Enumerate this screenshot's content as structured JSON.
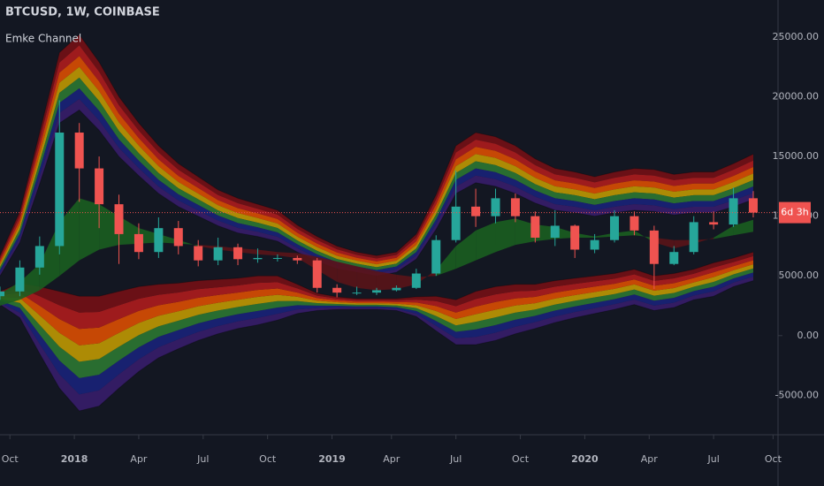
{
  "chart_data": {
    "type": "candlestick",
    "title": "BTCUSD, 1W, COINBASE",
    "subtitle": "Emke Channel",
    "x": [
      0,
      4,
      8,
      12,
      16,
      20,
      24,
      28,
      32,
      36,
      40,
      44,
      48,
      52,
      56,
      60,
      64,
      68,
      72,
      76,
      80,
      84,
      88,
      92,
      96,
      100,
      104,
      108,
      112,
      116,
      120,
      124,
      128,
      132,
      136,
      140,
      144,
      148,
      152
    ],
    "xlim": [
      0,
      157
    ],
    "xticks": [
      {
        "value": 2,
        "label": "Oct"
      },
      {
        "value": 15,
        "label": "2018"
      },
      {
        "value": 28,
        "label": "Apr"
      },
      {
        "value": 41,
        "label": "Jul"
      },
      {
        "value": 54,
        "label": "Oct"
      },
      {
        "value": 67,
        "label": "2019"
      },
      {
        "value": 79,
        "label": "Apr"
      },
      {
        "value": 92,
        "label": "Jul"
      },
      {
        "value": 105,
        "label": "Oct"
      },
      {
        "value": 118,
        "label": "2020"
      },
      {
        "value": 131,
        "label": "Apr"
      },
      {
        "value": 144,
        "label": "Jul"
      },
      {
        "value": 156,
        "label": "Oct"
      }
    ],
    "ylim": [
      -8300,
      28100
    ],
    "yticks": [
      {
        "value": -5000,
        "label": "-5000.00"
      },
      {
        "value": 0,
        "label": "0.00"
      },
      {
        "value": 5000,
        "label": "5000.00"
      },
      {
        "value": 10000,
        "label": "10000.00"
      },
      {
        "value": 15000,
        "label": "15000.00"
      },
      {
        "value": 20000,
        "label": "20000.00"
      },
      {
        "value": 25000,
        "label": "25000.00"
      }
    ],
    "candles": {
      "open": [
        3300,
        3700,
        5700,
        7500,
        17000,
        14000,
        11000,
        8500,
        7000,
        9000,
        7500,
        6300,
        7400,
        6400,
        6500,
        6500,
        6300,
        4000,
        3600,
        3600,
        3800,
        4000,
        5200,
        8000,
        10800,
        10000,
        11500,
        10000,
        8200,
        9200,
        7200,
        8000,
        10000,
        8800,
        6000,
        7000,
        9500,
        9300,
        11500
      ],
      "high": [
        4100,
        6300,
        8300,
        19700,
        17800,
        15000,
        11800,
        9400,
        9900,
        9600,
        8000,
        8200,
        7700,
        7300,
        6800,
        6700,
        6500,
        4300,
        4100,
        4000,
        4200,
        5600,
        8400,
        13800,
        12300,
        12300,
        11900,
        10400,
        10500,
        9300,
        8500,
        10500,
        10400,
        9200,
        7500,
        10000,
        10400,
        12400,
        12100
      ],
      "low": [
        3000,
        3300,
        5100,
        6800,
        11200,
        9000,
        6000,
        6400,
        6500,
        6800,
        5800,
        5900,
        5900,
        6100,
        6200,
        6000,
        3600,
        3200,
        3400,
        3400,
        3700,
        3900,
        5000,
        7800,
        9100,
        9400,
        9500,
        7800,
        7500,
        6500,
        6900,
        7800,
        8400,
        3900,
        5900,
        6800,
        8900,
        9100,
        9900
      ],
      "close": [
        3700,
        5700,
        7500,
        17000,
        14000,
        11000,
        8500,
        7000,
        9000,
        7500,
        6300,
        7400,
        6400,
        6500,
        6500,
        6300,
        4000,
        3600,
        3600,
        3800,
        4000,
        5200,
        8000,
        10800,
        10000,
        11500,
        10000,
        8200,
        9200,
        7200,
        8000,
        10000,
        8800,
        6000,
        7000,
        9500,
        9300,
        11500,
        10300
      ],
      "up_color": "#26a69a",
      "down_color": "#ef5350"
    },
    "channel": {
      "upper_outer": [
        6700,
        10400,
        17000,
        23700,
        25200,
        22900,
        20000,
        17800,
        15900,
        14400,
        13300,
        12200,
        11500,
        11000,
        10500,
        9250,
        8300,
        7500,
        7000,
        6700,
        7000,
        8500,
        11800,
        15900,
        17000,
        16650,
        15900,
        14800,
        14000,
        13700,
        13300,
        13700,
        14000,
        13900,
        13500,
        13700,
        13700,
        14400,
        15200
      ],
      "upper_inner": [
        5000,
        7800,
        12700,
        17800,
        18900,
        17200,
        15000,
        13400,
        11900,
        10800,
        10000,
        9200,
        8600,
        8300,
        7900,
        7000,
        6200,
        5600,
        5300,
        5000,
        5300,
        6400,
        8900,
        11900,
        12800,
        12500,
        11900,
        11100,
        10500,
        10300,
        10000,
        10300,
        10500,
        10400,
        10100,
        10300,
        10300,
        10800,
        11400
      ],
      "lower_inner": [
        3700,
        4400,
        4100,
        3700,
        3300,
        3300,
        3700,
        4100,
        4300,
        4400,
        4600,
        4700,
        4800,
        5000,
        5000,
        4300,
        3550,
        3250,
        3100,
        3100,
        3100,
        3250,
        3300,
        3000,
        3700,
        4100,
        4300,
        4300,
        4600,
        4800,
        5000,
        5200,
        5550,
        5000,
        5200,
        5550,
        6100,
        6500,
        7000
      ],
      "lower_outer": [
        2600,
        1500,
        -1500,
        -4400,
        -6300,
        -5900,
        -4400,
        -3000,
        -1850,
        -1100,
        -400,
        150,
        600,
        900,
        1300,
        1850,
        2100,
        2200,
        2200,
        2200,
        2100,
        1600,
        400,
        -750,
        -750,
        -400,
        150,
        600,
        1100,
        1500,
        1850,
        2200,
        2600,
        2100,
        2350,
        3000,
        3300,
        4100,
        4600
      ],
      "colors": [
        "#7a0f14",
        "#b71c1c",
        "#e65100",
        "#c9a000",
        "#2e7d32",
        "#1a237e",
        "#3a1d6e"
      ]
    },
    "averages": {
      "fast": [
        3500,
        4500,
        6000,
        9500,
        11500,
        11000,
        10000,
        9000,
        8500,
        8000,
        7500,
        7200,
        7000,
        6800,
        6700,
        6500,
        5500,
        4500,
        4000,
        3800,
        3900,
        4300,
        5500,
        7500,
        8800,
        9500,
        9800,
        9300,
        9100,
        8600,
        8300,
        8600,
        8800,
        7800,
        7300,
        7700,
        8200,
        9200,
        9700
      ],
      "slow": [
        2500,
        3000,
        3800,
        5000,
        6300,
        7200,
        7600,
        7700,
        7800,
        7700,
        7600,
        7500,
        7300,
        7200,
        7000,
        6900,
        6600,
        6200,
        5800,
        5400,
        5100,
        4900,
        5000,
        5600,
        6300,
        7000,
        7600,
        7900,
        8100,
        8200,
        8200,
        8300,
        8400,
        8200,
        8000,
        8000,
        8100,
        8400,
        8700
      ],
      "rise_color": "#1b5e20",
      "fall_color": "#5a1418"
    },
    "last_price": {
      "value": 10300,
      "label": "6d 3h",
      "color": "#ef5350"
    }
  }
}
